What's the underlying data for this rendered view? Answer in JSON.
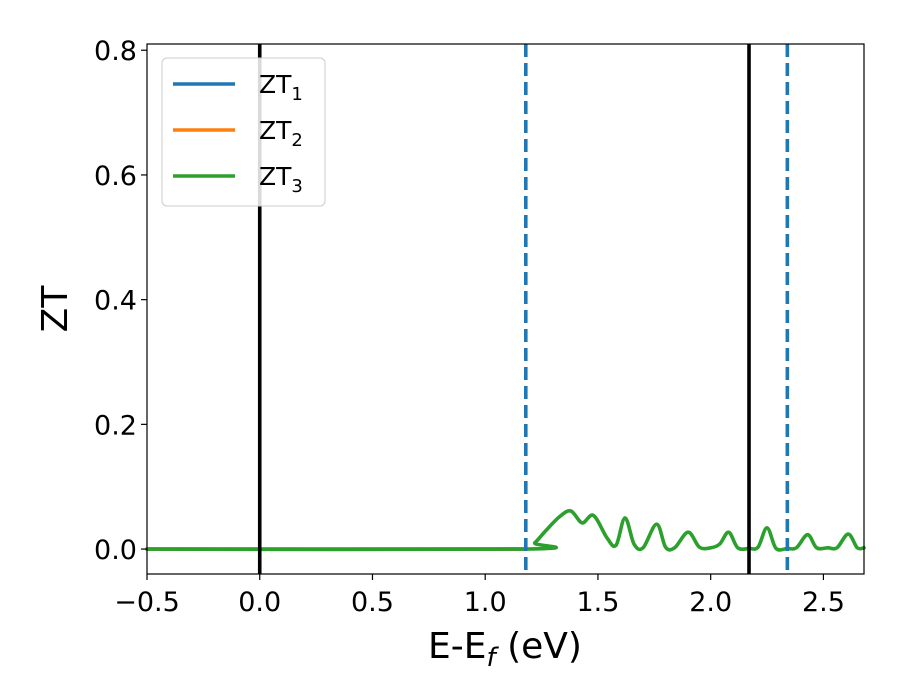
{
  "chart_data": {
    "type": "line",
    "xlabel": {
      "main": "E-E",
      "sub": "f",
      "suffix": " (eV)"
    },
    "ylabel": "ZT",
    "xlim": [
      -0.5,
      2.68
    ],
    "ylim": [
      -0.04,
      0.81
    ],
    "xticks": [
      -0.5,
      0.0,
      0.5,
      1.0,
      1.5,
      2.0,
      2.5
    ],
    "xtick_labels": [
      "−0.5",
      "0.0",
      "0.5",
      "1.0",
      "1.5",
      "2.0",
      "2.5"
    ],
    "yticks": [
      0.0,
      0.2,
      0.4,
      0.6,
      0.8
    ],
    "ytick_labels": [
      "0.0",
      "0.2",
      "0.4",
      "0.6",
      "0.8"
    ],
    "grid": false,
    "legend": {
      "placement": "upper-left"
    },
    "series": [
      {
        "name": "ZT",
        "sub": "1",
        "color": "#1f77b4",
        "x": [
          -0.5,
          1.18
        ],
        "y": [
          0.0,
          0.0
        ]
      },
      {
        "name": "ZT",
        "sub": "2",
        "color": "#ff7f0e",
        "x": [
          -0.5,
          1.18
        ],
        "y": [
          0.0,
          0.0
        ]
      },
      {
        "name": "ZT",
        "sub": "3",
        "color": "#2ca02c",
        "x": [
          -0.5,
          1.18,
          1.22,
          1.27,
          1.33,
          1.38,
          1.43,
          1.48,
          1.54,
          1.58,
          1.62,
          1.66,
          1.7,
          1.76,
          1.8,
          1.84,
          1.9,
          1.95,
          2.0,
          2.04,
          2.08,
          2.12,
          2.17,
          2.21,
          2.25,
          2.29,
          2.34,
          2.38,
          2.43,
          2.47,
          2.52,
          2.56,
          2.61,
          2.65,
          2.68
        ],
        "y": [
          0.0,
          0.0,
          0.01,
          0.03,
          0.052,
          0.061,
          0.042,
          0.054,
          0.018,
          0.006,
          0.05,
          0.008,
          0.002,
          0.04,
          0.003,
          0.002,
          0.027,
          0.003,
          0.002,
          0.008,
          0.027,
          0.002,
          0.001,
          0.003,
          0.034,
          0.001,
          0.001,
          0.002,
          0.023,
          0.002,
          0.002,
          0.002,
          0.024,
          0.002,
          0.002
        ]
      }
    ],
    "vlines": [
      {
        "x": 0.0,
        "style": "solid",
        "color": "#000000"
      },
      {
        "x": 2.17,
        "style": "solid",
        "color": "#000000"
      },
      {
        "x": 1.18,
        "style": "dashed",
        "color": "#1f77b4"
      },
      {
        "x": 2.34,
        "style": "dashed",
        "color": "#1f77b4"
      }
    ]
  }
}
